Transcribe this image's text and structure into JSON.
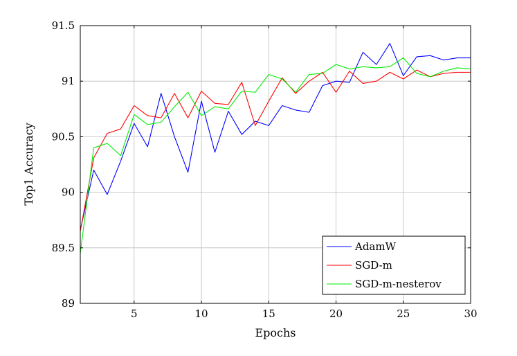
{
  "chart_data": {
    "type": "line",
    "title": "",
    "xlabel": "Epochs",
    "ylabel": "Top1 Accuracy",
    "xlim": [
      1,
      30
    ],
    "ylim": [
      89,
      91.5
    ],
    "xticks": [
      5,
      10,
      15,
      20,
      25,
      30
    ],
    "yticks": [
      89,
      89.5,
      90,
      90.5,
      91,
      91.5
    ],
    "xtick_labels": [
      "5",
      "10",
      "15",
      "20",
      "25",
      "30"
    ],
    "ytick_labels": [
      "89",
      "89.5",
      "90",
      "90.5",
      "91",
      "91.5"
    ],
    "grid": true,
    "legend_position": "bottom-right",
    "x": [
      1,
      2,
      3,
      4,
      5,
      6,
      7,
      8,
      9,
      10,
      11,
      12,
      13,
      14,
      15,
      16,
      17,
      18,
      19,
      20,
      21,
      22,
      23,
      24,
      25,
      26,
      27,
      28,
      29,
      30
    ],
    "series": [
      {
        "name": "AdamW",
        "color": "#0000ff",
        "values": [
          89.66,
          90.2,
          89.98,
          90.28,
          90.62,
          90.41,
          90.89,
          90.5,
          90.18,
          90.82,
          90.36,
          90.73,
          90.52,
          90.64,
          90.6,
          90.78,
          90.74,
          90.72,
          90.96,
          91.0,
          90.99,
          91.26,
          91.15,
          91.34,
          91.05,
          91.22,
          91.23,
          91.19,
          91.21,
          91.21
        ]
      },
      {
        "name": "SGD-m",
        "color": "#ff0000",
        "values": [
          89.65,
          90.31,
          90.53,
          90.57,
          90.78,
          90.69,
          90.67,
          90.89,
          90.67,
          90.91,
          90.8,
          90.79,
          90.99,
          90.6,
          90.82,
          91.03,
          90.89,
          91.0,
          91.08,
          90.9,
          91.09,
          90.98,
          91.0,
          91.08,
          91.02,
          91.1,
          91.04,
          91.07,
          91.08,
          91.08
        ]
      },
      {
        "name": "SGD-m-nesterov",
        "color": "#00ee00",
        "values": [
          89.45,
          90.4,
          90.44,
          90.33,
          90.7,
          90.61,
          90.63,
          90.77,
          90.9,
          90.69,
          90.77,
          90.75,
          90.91,
          90.9,
          91.06,
          91.02,
          90.9,
          91.06,
          91.07,
          91.15,
          91.11,
          91.13,
          91.12,
          91.13,
          91.21,
          91.07,
          91.04,
          91.09,
          91.12,
          91.11
        ]
      }
    ]
  }
}
